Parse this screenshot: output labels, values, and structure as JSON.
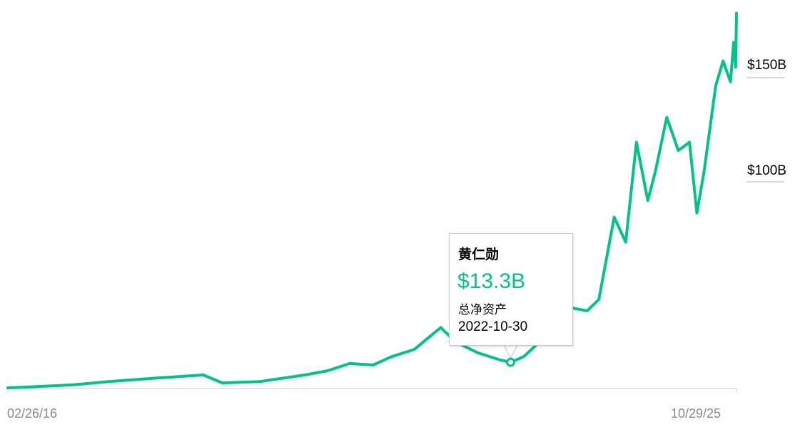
{
  "chart_data": {
    "type": "line",
    "color": "#00c389",
    "x_tick_labels": [
      "02/26/16",
      "10/29/25"
    ],
    "y_tick_labels": [
      {
        "value": 100,
        "label": "$100B"
      },
      {
        "value": 150,
        "label": "$150B"
      }
    ],
    "ylim": [
      0,
      180
    ],
    "grid": false,
    "series": [
      {
        "x": [
          "2016-02-26",
          "2017-01-01",
          "2017-07-01",
          "2018-02-25",
          "2018-10-01",
          "2019-01-01",
          "2019-07-01",
          "2020-02-05",
          "2020-05-25",
          "2020-09-10",
          "2021-01-01",
          "2021-04-01",
          "2021-07-20",
          "2021-11-25",
          "2022-02-05",
          "2022-05-25",
          "2022-09-10",
          "2022-10-30",
          "2023-01-01",
          "2023-04-20",
          "2023-07-20",
          "2023-11-05",
          "2024-01-01",
          "2024-03-15",
          "2024-05-10",
          "2024-07-01",
          "2024-08-25",
          "2024-10-01",
          "2024-11-25",
          "2025-01-20",
          "2025-03-15",
          "2025-04-20",
          "2025-05-25",
          "2025-07-20",
          "2025-08-25",
          "2025-09-30",
          "2025-10-15",
          "2025-10-25",
          "2025-10-29"
        ],
        "values": [
          1,
          2.4,
          4,
          5.8,
          7.2,
          3.4,
          4,
          7.2,
          9.2,
          12.7,
          12,
          16,
          19.5,
          30,
          23,
          17.8,
          14.4,
          13.3,
          16,
          26,
          40,
          38,
          43.5,
          83,
          71,
          119,
          91,
          105,
          131,
          115,
          119,
          85,
          105,
          146,
          158,
          148,
          167,
          155,
          181
        ]
      }
    ]
  },
  "tooltip": {
    "name": "黄仁勋",
    "value": "$13.3B",
    "label": "总净资产",
    "date": "2022-10-30"
  }
}
